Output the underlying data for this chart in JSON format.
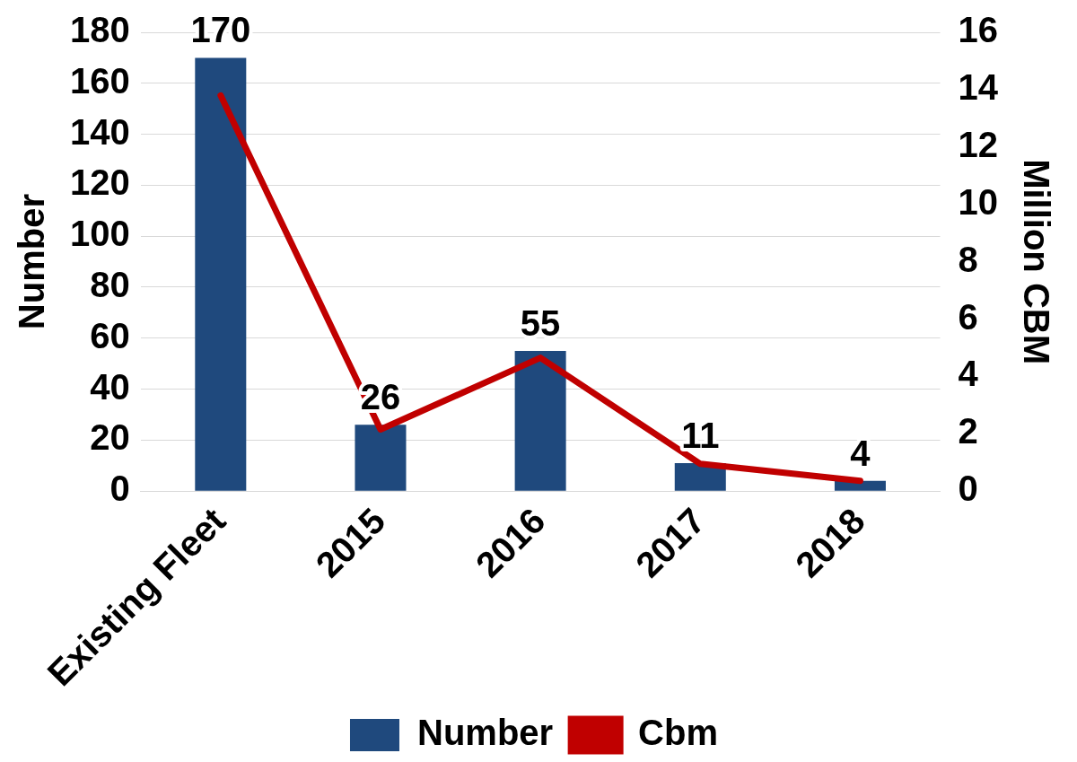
{
  "chart_data": {
    "type": "bar",
    "categories": [
      "Existing Fleet",
      "2015",
      "2016",
      "2017",
      "2018"
    ],
    "series": [
      {
        "name": "Number",
        "color": "#1f497d",
        "values": [
          170,
          26,
          55,
          11,
          4
        ],
        "value_labels": [
          "170",
          "26",
          "55",
          "11",
          "4"
        ]
      },
      {
        "name": "Cbm",
        "type": "line",
        "axis": "y2",
        "color": "#c00000",
        "values": [
          13.8,
          2.15,
          4.65,
          0.95,
          0.36
        ]
      }
    ],
    "ylabel": "Number",
    "y2label": "Million CBM",
    "ylim": [
      0,
      180
    ],
    "yticks": [
      0,
      20,
      40,
      60,
      80,
      100,
      120,
      140,
      160,
      180
    ],
    "y2lim": [
      0,
      16
    ],
    "y2ticks": [
      0,
      2,
      4,
      6,
      8,
      10,
      12,
      14,
      16
    ],
    "grid": "y",
    "legend": "bottom",
    "marker": "none"
  }
}
